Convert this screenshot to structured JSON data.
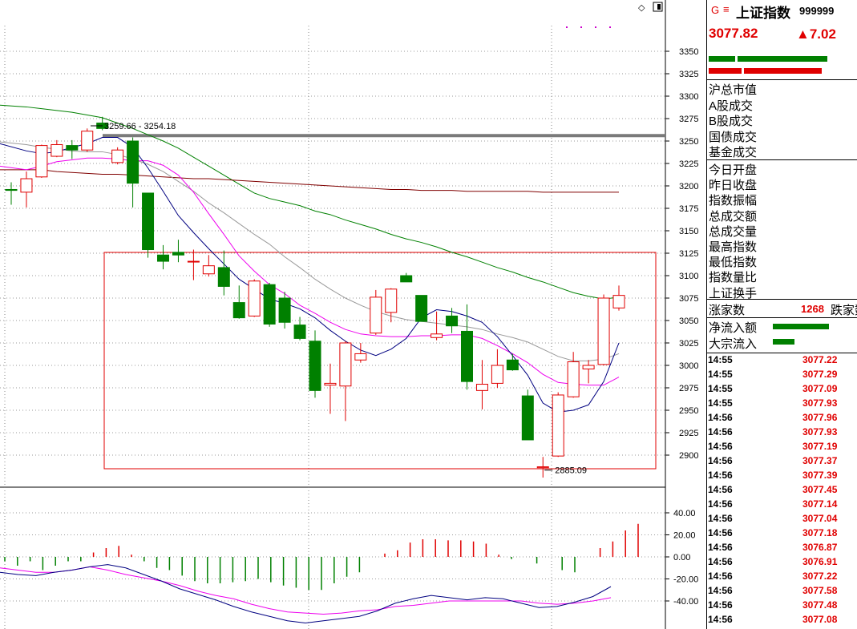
{
  "chart_data": {
    "type": "candlestick",
    "main": {
      "yticks": [
        3350,
        3325,
        3300,
        3275,
        3250,
        3225,
        3200,
        3175,
        3150,
        3125,
        3100,
        3075,
        3050,
        3025,
        3000,
        2975,
        2950,
        2925,
        2900
      ],
      "candles": [
        {
          "o": 3196,
          "h": 3204,
          "l": 3179,
          "c": 3195
        },
        {
          "o": 3193,
          "h": 3216,
          "l": 3176,
          "c": 3208
        },
        {
          "o": 3210,
          "h": 3246,
          "l": 3209,
          "c": 3245
        },
        {
          "o": 3233,
          "h": 3251,
          "l": 3232,
          "c": 3246
        },
        {
          "o": 3245,
          "h": 3251,
          "l": 3230,
          "c": 3240
        },
        {
          "o": 3240,
          "h": 3264,
          "l": 3238,
          "c": 3261
        },
        {
          "o": 3270,
          "h": 3277,
          "l": 3262,
          "c": 3264
        },
        {
          "o": 3226,
          "h": 3243,
          "l": 3224,
          "c": 3240
        },
        {
          "o": 3250,
          "h": 3254,
          "l": 3176,
          "c": 3203
        },
        {
          "o": 3192,
          "h": 3192,
          "l": 3120,
          "c": 3129
        },
        {
          "o": 3123,
          "h": 3134,
          "l": 3107,
          "c": 3116
        },
        {
          "o": 3126,
          "h": 3140,
          "l": 3115,
          "c": 3123
        },
        {
          "o": 3116,
          "h": 3129,
          "l": 3095,
          "c": 3116
        },
        {
          "o": 3102,
          "h": 3123,
          "l": 3099,
          "c": 3111
        },
        {
          "o": 3109,
          "h": 3128,
          "l": 3078,
          "c": 3088
        },
        {
          "o": 3070,
          "h": 3089,
          "l": 3052,
          "c": 3053
        },
        {
          "o": 3055,
          "h": 3096,
          "l": 3054,
          "c": 3094
        },
        {
          "o": 3090,
          "h": 3092,
          "l": 3043,
          "c": 3046
        },
        {
          "o": 3075,
          "h": 3082,
          "l": 3041,
          "c": 3048
        },
        {
          "o": 3045,
          "h": 3054,
          "l": 3028,
          "c": 3030
        },
        {
          "o": 3027,
          "h": 3039,
          "l": 2964,
          "c": 2972
        },
        {
          "o": 2978,
          "h": 3002,
          "l": 2946,
          "c": 2980
        },
        {
          "o": 2977,
          "h": 3027,
          "l": 2938,
          "c": 3025
        },
        {
          "o": 3006,
          "h": 3025,
          "l": 3003,
          "c": 3013
        },
        {
          "o": 3036,
          "h": 3084,
          "l": 3034,
          "c": 3076
        },
        {
          "o": 3059,
          "h": 3086,
          "l": 3048,
          "c": 3085
        },
        {
          "o": 3100,
          "h": 3103,
          "l": 3093,
          "c": 3093
        },
        {
          "o": 3078,
          "h": 3078,
          "l": 3049,
          "c": 3049
        },
        {
          "o": 3031,
          "h": 3060,
          "l": 3028,
          "c": 3035
        },
        {
          "o": 3055,
          "h": 3064,
          "l": 3036,
          "c": 3044
        },
        {
          "o": 3038,
          "h": 3068,
          "l": 2973,
          "c": 2982
        },
        {
          "o": 2972,
          "h": 3006,
          "l": 2951,
          "c": 2979
        },
        {
          "o": 2980,
          "h": 3018,
          "l": 2975,
          "c": 3000
        },
        {
          "o": 3006,
          "h": 3013,
          "l": 2994,
          "c": 2995
        },
        {
          "o": 2966,
          "h": 2973,
          "l": 2920,
          "c": 2917
        },
        {
          "o": 2886,
          "h": 2898,
          "l": 2875,
          "c": 2887
        },
        {
          "o": 2899,
          "h": 2970,
          "l": 2898,
          "c": 2967
        },
        {
          "o": 2965,
          "h": 3015,
          "l": 2964,
          "c": 3004
        },
        {
          "o": 2996,
          "h": 3006,
          "l": 2980,
          "c": 3000
        },
        {
          "o": 3001,
          "h": 3079,
          "l": 3000,
          "c": 3075
        },
        {
          "o": 3064,
          "h": 3089,
          "l": 3061,
          "c": 3078
        }
      ],
      "ma_short": [
        3247,
        3239,
        3236,
        3238,
        3243,
        3247,
        3254,
        3254,
        3243,
        3220,
        3194,
        3167,
        3148,
        3130,
        3113,
        3096,
        3085,
        3074,
        3069,
        3063,
        3053,
        3039,
        3027,
        3017,
        3011,
        3018,
        3030,
        3053,
        3062,
        3060,
        3055,
        3048,
        3032,
        3011,
        2989,
        2958,
        2948,
        2950,
        2956,
        2982,
        3025
      ],
      "ma_mid": [
        3222,
        3218,
        3222,
        3227,
        3229,
        3231,
        3231,
        3230,
        3228,
        3228,
        3223,
        3212,
        3193,
        3169,
        3146,
        3122,
        3105,
        3090,
        3080,
        3067,
        3058,
        3048,
        3040,
        3035,
        3033,
        3032,
        3032,
        3033,
        3033,
        3034,
        3034,
        3030,
        3022,
        3013,
        3003,
        2990,
        2981,
        2979,
        2978,
        2978,
        2987
      ],
      "ma_long": [
        3249,
        3246,
        3243,
        3241,
        3239,
        3238,
        3238,
        3235,
        3230,
        3224,
        3216,
        3205,
        3194,
        3181,
        3170,
        3158,
        3146,
        3135,
        3121,
        3109,
        3096,
        3085,
        3075,
        3067,
        3060,
        3055,
        3051,
        3049,
        3047,
        3045,
        3043,
        3040,
        3035,
        3031,
        3026,
        3018,
        3010,
        3005,
        3005,
        3007,
        3013
      ],
      "ma_slow": [
        3218,
        3218,
        3218,
        3216,
        3215,
        3214,
        3213,
        3213,
        3212,
        3211,
        3210,
        3209,
        3208,
        3208,
        3207,
        3206,
        3205,
        3204,
        3203,
        3202,
        3201,
        3200,
        3199,
        3198,
        3197,
        3196,
        3196,
        3195,
        3195,
        3195,
        3194,
        3194,
        3194,
        3194,
        3194,
        3193,
        3193,
        3193,
        3193,
        3193,
        3193
      ],
      "ma_slowest": [
        3290,
        3288,
        3286,
        3284,
        3282,
        3279,
        3276,
        3270,
        3264,
        3257,
        3250,
        3242,
        3232,
        3222,
        3212,
        3202,
        3192,
        3186,
        3182,
        3178,
        3172,
        3168,
        3162,
        3157,
        3152,
        3146,
        3141,
        3137,
        3132,
        3126,
        3121,
        3115,
        3109,
        3104,
        3098,
        3093,
        3087,
        3081,
        3077,
        3074,
        3076
      ],
      "level_line": 3256,
      "high_label": "3259.66 - 3254.18",
      "low_label": "2885.09",
      "low_value": 2885.09
    },
    "macd": {
      "yticks": [
        "40.00",
        "20.00",
        "0.00",
        "-20.00",
        "-40.00"
      ],
      "ytick_values": [
        40,
        20,
        0,
        -20,
        -40
      ],
      "hist": [
        -4,
        -8,
        -4,
        -12,
        -8,
        -4,
        -4,
        4,
        8,
        10,
        2,
        -4,
        -10,
        -12,
        -17,
        -22,
        -24,
        -24,
        -23,
        -22,
        -20,
        -23,
        -26,
        -28,
        -30,
        -30,
        -24,
        -18,
        -14,
        0,
        3,
        6,
        13,
        16,
        16,
        15,
        15,
        14,
        12,
        2,
        -2,
        0,
        -6,
        0,
        -12,
        -14,
        0,
        8,
        14,
        24,
        30
      ],
      "dif": [
        -14,
        -16,
        -17,
        -14,
        -12,
        -9,
        -7,
        -10,
        -16,
        -22,
        -29,
        -34,
        -39,
        -45,
        -50,
        -54,
        -58,
        -60,
        -58,
        -56,
        -54,
        -49,
        -42,
        -38,
        -35,
        -37,
        -39,
        -37,
        -38,
        -42,
        -46,
        -45,
        -41,
        -36,
        -27
      ],
      "dea": [
        -10,
        -12,
        -14,
        -14,
        -12,
        -9,
        -12,
        -16,
        -19,
        -22,
        -26,
        -31,
        -35,
        -38,
        -43,
        -47,
        -50,
        -51,
        -52,
        -51,
        -49,
        -48,
        -45,
        -44,
        -42,
        -40,
        -40,
        -40,
        -40,
        -40,
        -42,
        -43,
        -42,
        -40,
        -37
      ]
    }
  },
  "panel": {
    "g_label": "G",
    "menu_label": "≡",
    "index_name": "上证指数",
    "index_code": "999999",
    "price": "3077.82",
    "change": "▲7.02",
    "labels1": [
      "沪总市值",
      "A股成交",
      "B股成交",
      "国债成交",
      "基金成交"
    ],
    "labels2": [
      "今日开盘",
      "昨日收盘",
      "指数振幅",
      "总成交额",
      "总成交量",
      "最高指数",
      "最低指数",
      "指数量比",
      "上证换手"
    ],
    "adv_label": "涨家数",
    "adv_value": "1268",
    "dec_label": "跌家数",
    "flow_labels": [
      "净流入额",
      "大宗流入"
    ],
    "ticks": [
      {
        "t": "14:55",
        "p": "3077.22"
      },
      {
        "t": "14:55",
        "p": "3077.29"
      },
      {
        "t": "14:55",
        "p": "3077.09"
      },
      {
        "t": "14:55",
        "p": "3077.93"
      },
      {
        "t": "14:56",
        "p": "3077.96"
      },
      {
        "t": "14:56",
        "p": "3077.93"
      },
      {
        "t": "14:56",
        "p": "3077.19"
      },
      {
        "t": "14:56",
        "p": "3077.37"
      },
      {
        "t": "14:56",
        "p": "3077.39"
      },
      {
        "t": "14:56",
        "p": "3077.45"
      },
      {
        "t": "14:56",
        "p": "3077.14"
      },
      {
        "t": "14:56",
        "p": "3077.04"
      },
      {
        "t": "14:56",
        "p": "3077.18"
      },
      {
        "t": "14:56",
        "p": "3076.87"
      },
      {
        "t": "14:56",
        "p": "3076.91"
      },
      {
        "t": "14:56",
        "p": "3077.22"
      },
      {
        "t": "14:56",
        "p": "3077.58"
      },
      {
        "t": "14:56",
        "p": "3077.48"
      },
      {
        "t": "14:56",
        "p": "3077.08"
      }
    ],
    "colors": {
      "up": "#e00000",
      "down": "#008000"
    }
  }
}
